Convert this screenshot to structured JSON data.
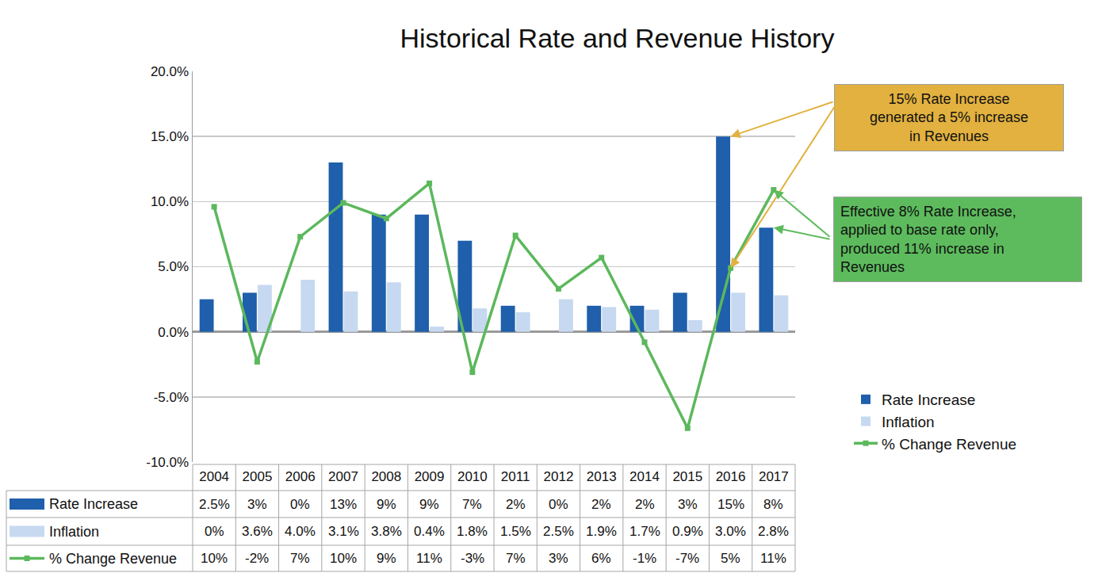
{
  "chart_data": {
    "type": "bar",
    "title": "Historical Rate and Revenue History",
    "categories": [
      "2004",
      "2005",
      "2006",
      "2007",
      "2008",
      "2009",
      "2010",
      "2011",
      "2012",
      "2013",
      "2014",
      "2015",
      "2016",
      "2017"
    ],
    "series": [
      {
        "name": "Rate Increase",
        "type": "bar",
        "color": "#1f5fab",
        "values": [
          2.5,
          3,
          0,
          13,
          9,
          9,
          7,
          2,
          0,
          2,
          2,
          3,
          15,
          8
        ],
        "value_labels": [
          "2.5%",
          "3%",
          "0%",
          "13%",
          "9%",
          "9%",
          "7%",
          "2%",
          "0%",
          "2%",
          "2%",
          "3%",
          "15%",
          "8%"
        ]
      },
      {
        "name": "Inflation",
        "type": "bar",
        "color": "#c6d9f0",
        "values": [
          0,
          3.6,
          4.0,
          3.1,
          3.8,
          0.4,
          1.8,
          1.5,
          2.5,
          1.9,
          1.7,
          0.9,
          3.0,
          2.8
        ],
        "value_labels": [
          "0%",
          "3.6%",
          "4.0%",
          "3.1%",
          "3.8%",
          "0.4%",
          "1.8%",
          "1.5%",
          "2.5%",
          "1.9%",
          "1.7%",
          "0.9%",
          "3.0%",
          "2.8%"
        ]
      },
      {
        "name": "% Change Revenue",
        "type": "line",
        "color": "#5cb85c",
        "marker": "square",
        "values": [
          9.6,
          -2.3,
          7.3,
          9.9,
          8.7,
          11.4,
          -3.1,
          7.4,
          3.3,
          5.7,
          -0.8,
          -7.4,
          4.9,
          10.9
        ],
        "value_labels": [
          "10%",
          "-2%",
          "7%",
          "10%",
          "9%",
          "11%",
          "-3%",
          "7%",
          "3%",
          "6%",
          "-1%",
          "-7%",
          "5%",
          "11%"
        ]
      }
    ],
    "ylim": [
      -10,
      20
    ],
    "yticks": [
      {
        "value": -10,
        "label": "-10.0%"
      },
      {
        "value": -5,
        "label": "-5.0%"
      },
      {
        "value": 0,
        "label": "0.0%"
      },
      {
        "value": 5,
        "label": "5.0%"
      },
      {
        "value": 10,
        "label": "10.0%"
      },
      {
        "value": 15,
        "label": "15.0%"
      },
      {
        "value": 20,
        "label": "20.0%"
      }
    ],
    "grid": true,
    "legend": "right",
    "annotations": [
      {
        "text": "15% Rate Increase\ngenerated a 5% increase\nin Revenues",
        "color": "#e2b13f",
        "targets": [
          [
            "2016",
            "Rate Increase"
          ],
          [
            "2016",
            "% Change Revenue"
          ]
        ]
      },
      {
        "text": "Effective 8% Rate Increase,\napplied to base rate only,\nproduced 11% increase in\nRevenues",
        "color": "#5dbb5d",
        "targets": [
          [
            "2017",
            "% Change Revenue"
          ],
          [
            "2017",
            "Rate Increase"
          ]
        ]
      }
    ]
  }
}
